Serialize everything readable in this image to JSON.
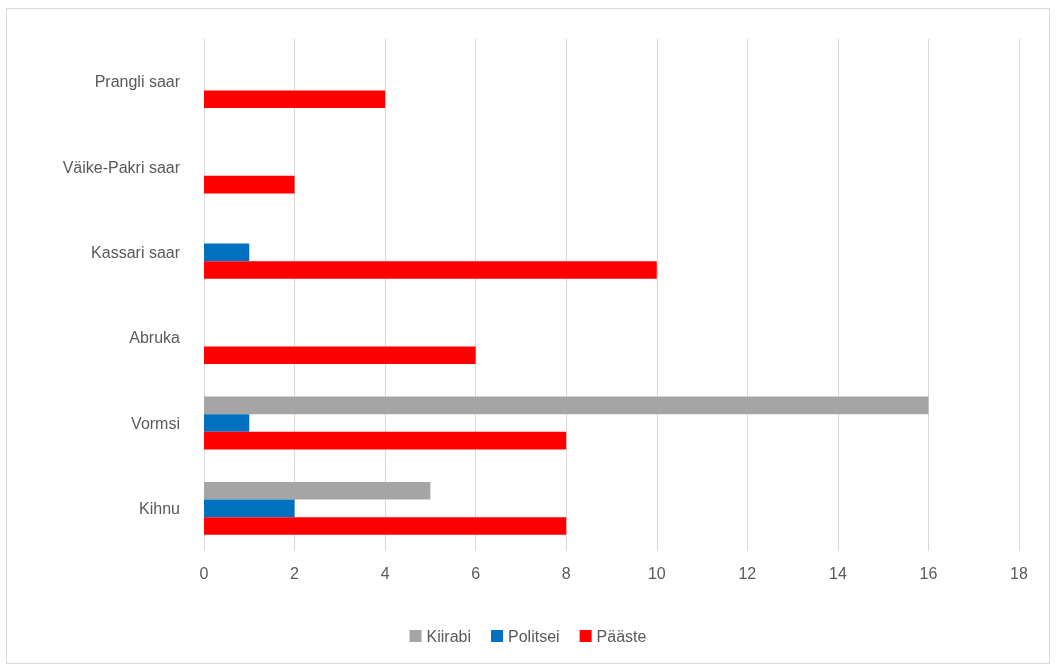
{
  "chart_data": {
    "type": "bar",
    "orientation": "horizontal",
    "categories": [
      "Prangli saar",
      "Väike-Pakri saar",
      "Kassari saar",
      "Abruka",
      "Vormsi",
      "Kihnu"
    ],
    "series": [
      {
        "name": "Kiirabi",
        "color": "#a5a5a5",
        "values": [
          null,
          null,
          null,
          null,
          16,
          5
        ]
      },
      {
        "name": "Politsei",
        "color": "#0070c0",
        "values": [
          null,
          null,
          1,
          null,
          1,
          2
        ]
      },
      {
        "name": "Pääste",
        "color": "#ff0000",
        "values": [
          4,
          2,
          10,
          6,
          8,
          8
        ]
      }
    ],
    "xlim": [
      0,
      18
    ],
    "xticks": [
      0,
      2,
      4,
      6,
      8,
      10,
      12,
      14,
      16,
      18
    ],
    "grid": "x",
    "legend": "bottom"
  }
}
